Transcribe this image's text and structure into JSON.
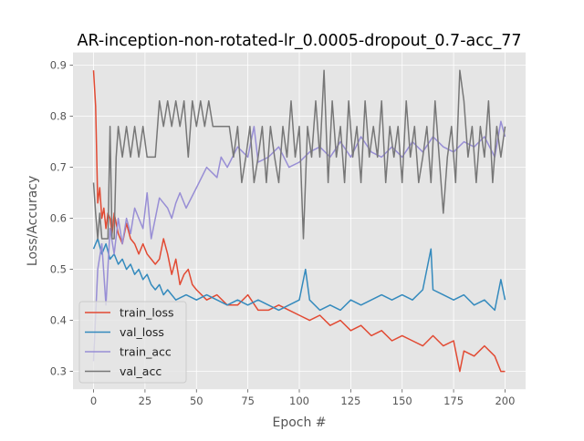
{
  "chart_data": {
    "type": "line",
    "title": "AR-inception-non-rotated-lr_0.0005-dropout_0.7-acc_77",
    "xlabel": "Epoch #",
    "ylabel": "Loss/Accuracy",
    "xlim": [
      -10,
      210
    ],
    "ylim": [
      0.265,
      0.925
    ],
    "xticks": [
      0,
      25,
      50,
      75,
      100,
      125,
      150,
      175,
      200
    ],
    "yticks": [
      0.3,
      0.4,
      0.5,
      0.6,
      0.7,
      0.8,
      0.9
    ],
    "grid": true,
    "legend_position": "lower-left",
    "style": {
      "background": "#E5E5E5",
      "grid_color": "#FFFFFF",
      "text_color": "#555555",
      "title_color": "#000000"
    },
    "series": [
      {
        "name": "train_loss",
        "color": "#E24A33",
        "x": [
          0,
          1,
          2,
          3,
          4,
          5,
          6,
          7,
          8,
          9,
          10,
          12,
          14,
          16,
          18,
          20,
          22,
          24,
          26,
          28,
          30,
          32,
          34,
          36,
          38,
          40,
          42,
          44,
          46,
          48,
          50,
          55,
          60,
          65,
          70,
          75,
          80,
          85,
          90,
          95,
          100,
          105,
          110,
          115,
          120,
          125,
          130,
          135,
          140,
          145,
          150,
          155,
          160,
          165,
          170,
          175,
          178,
          180,
          185,
          190,
          195,
          198,
          200
        ],
        "y": [
          0.89,
          0.82,
          0.63,
          0.66,
          0.6,
          0.62,
          0.58,
          0.61,
          0.6,
          0.57,
          0.61,
          0.57,
          0.55,
          0.59,
          0.56,
          0.55,
          0.53,
          0.55,
          0.53,
          0.52,
          0.51,
          0.52,
          0.56,
          0.53,
          0.49,
          0.52,
          0.47,
          0.49,
          0.5,
          0.47,
          0.46,
          0.44,
          0.45,
          0.43,
          0.43,
          0.45,
          0.42,
          0.42,
          0.43,
          0.42,
          0.41,
          0.4,
          0.41,
          0.39,
          0.4,
          0.38,
          0.39,
          0.37,
          0.38,
          0.36,
          0.37,
          0.36,
          0.35,
          0.37,
          0.35,
          0.36,
          0.3,
          0.34,
          0.33,
          0.35,
          0.33,
          0.3,
          0.3
        ]
      },
      {
        "name": "val_loss",
        "color": "#348ABD",
        "x": [
          0,
          2,
          4,
          6,
          8,
          10,
          12,
          14,
          16,
          18,
          20,
          22,
          24,
          26,
          28,
          30,
          32,
          34,
          36,
          38,
          40,
          45,
          50,
          55,
          60,
          65,
          70,
          75,
          80,
          85,
          90,
          95,
          100,
          103,
          105,
          110,
          115,
          120,
          125,
          130,
          135,
          140,
          145,
          150,
          155,
          160,
          164,
          165,
          170,
          175,
          180,
          185,
          190,
          195,
          198,
          200
        ],
        "y": [
          0.54,
          0.56,
          0.53,
          0.55,
          0.52,
          0.53,
          0.51,
          0.52,
          0.5,
          0.51,
          0.49,
          0.5,
          0.48,
          0.49,
          0.47,
          0.46,
          0.47,
          0.45,
          0.46,
          0.45,
          0.44,
          0.45,
          0.44,
          0.45,
          0.44,
          0.43,
          0.44,
          0.43,
          0.44,
          0.43,
          0.42,
          0.43,
          0.44,
          0.5,
          0.44,
          0.42,
          0.43,
          0.42,
          0.44,
          0.43,
          0.44,
          0.45,
          0.44,
          0.45,
          0.44,
          0.46,
          0.54,
          0.46,
          0.45,
          0.44,
          0.45,
          0.43,
          0.44,
          0.42,
          0.48,
          0.44
        ]
      },
      {
        "name": "train_acc",
        "color": "#988ED5",
        "x": [
          0,
          2,
          4,
          6,
          8,
          10,
          12,
          14,
          16,
          18,
          20,
          22,
          24,
          26,
          28,
          30,
          32,
          34,
          36,
          38,
          40,
          42,
          45,
          50,
          55,
          60,
          62,
          65,
          70,
          75,
          78,
          80,
          85,
          90,
          95,
          100,
          105,
          110,
          115,
          120,
          125,
          130,
          135,
          140,
          145,
          150,
          155,
          160,
          165,
          170,
          175,
          180,
          185,
          190,
          195,
          198,
          200
        ],
        "y": [
          0.32,
          0.5,
          0.55,
          0.43,
          0.58,
          0.53,
          0.6,
          0.55,
          0.6,
          0.57,
          0.62,
          0.6,
          0.58,
          0.65,
          0.56,
          0.6,
          0.64,
          0.63,
          0.62,
          0.6,
          0.63,
          0.65,
          0.62,
          0.66,
          0.7,
          0.68,
          0.72,
          0.7,
          0.74,
          0.72,
          0.78,
          0.71,
          0.72,
          0.74,
          0.7,
          0.71,
          0.73,
          0.74,
          0.72,
          0.75,
          0.72,
          0.76,
          0.73,
          0.72,
          0.74,
          0.72,
          0.75,
          0.73,
          0.76,
          0.74,
          0.73,
          0.75,
          0.74,
          0.76,
          0.72,
          0.79,
          0.76
        ]
      },
      {
        "name": "val_acc",
        "color": "#777777",
        "x": [
          0,
          1,
          2,
          3,
          4,
          5,
          7,
          8,
          9,
          10,
          11,
          12,
          14,
          16,
          18,
          20,
          22,
          24,
          26,
          28,
          30,
          32,
          34,
          36,
          38,
          40,
          42,
          44,
          46,
          48,
          50,
          52,
          54,
          56,
          58,
          60,
          62,
          64,
          66,
          68,
          70,
          72,
          74,
          76,
          78,
          80,
          82,
          84,
          86,
          88,
          90,
          92,
          94,
          96,
          98,
          100,
          102,
          104,
          106,
          108,
          110,
          112,
          114,
          116,
          118,
          120,
          122,
          124,
          126,
          128,
          130,
          132,
          134,
          136,
          138,
          140,
          142,
          144,
          146,
          148,
          150,
          152,
          154,
          156,
          158,
          160,
          162,
          164,
          166,
          168,
          170,
          172,
          174,
          176,
          178,
          180,
          182,
          184,
          186,
          188,
          190,
          192,
          194,
          196,
          198,
          200
        ],
        "y": [
          0.67,
          0.61,
          0.56,
          0.61,
          0.56,
          0.56,
          0.56,
          0.78,
          0.56,
          0.56,
          0.72,
          0.78,
          0.72,
          0.78,
          0.72,
          0.78,
          0.72,
          0.78,
          0.72,
          0.72,
          0.72,
          0.83,
          0.78,
          0.83,
          0.78,
          0.83,
          0.78,
          0.83,
          0.72,
          0.83,
          0.78,
          0.83,
          0.78,
          0.83,
          0.78,
          0.78,
          0.78,
          0.78,
          0.78,
          0.72,
          0.78,
          0.67,
          0.72,
          0.78,
          0.67,
          0.72,
          0.78,
          0.67,
          0.78,
          0.72,
          0.67,
          0.78,
          0.72,
          0.83,
          0.72,
          0.78,
          0.56,
          0.78,
          0.72,
          0.83,
          0.72,
          0.89,
          0.67,
          0.83,
          0.72,
          0.78,
          0.67,
          0.83,
          0.72,
          0.78,
          0.67,
          0.83,
          0.72,
          0.78,
          0.72,
          0.83,
          0.67,
          0.78,
          0.72,
          0.78,
          0.67,
          0.83,
          0.72,
          0.78,
          0.67,
          0.72,
          0.78,
          0.67,
          0.83,
          0.72,
          0.61,
          0.72,
          0.78,
          0.67,
          0.89,
          0.83,
          0.72,
          0.78,
          0.67,
          0.78,
          0.72,
          0.83,
          0.67,
          0.78,
          0.72,
          0.78
        ]
      }
    ]
  }
}
